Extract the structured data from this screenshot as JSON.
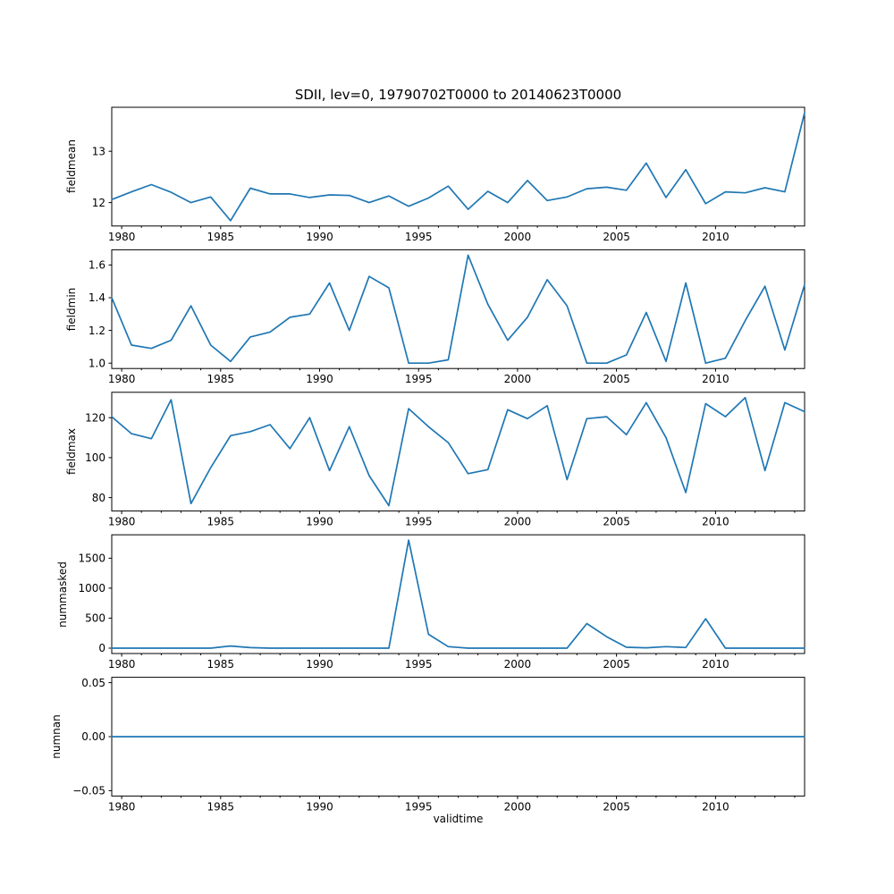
{
  "chart_data": {
    "type": "line",
    "title": "SDII, lev=0, 19790702T0000 to 20140623T0000",
    "xlabel": "validtime",
    "line_color": "#1f77b4",
    "background_color": "#ffffff",
    "legend": "none",
    "grid": false,
    "x": [
      1979.5,
      1980.5,
      1981.5,
      1982.5,
      1983.5,
      1984.5,
      1985.5,
      1986.5,
      1987.5,
      1988.5,
      1989.5,
      1990.5,
      1991.5,
      1992.5,
      1993.5,
      1994.5,
      1995.5,
      1996.5,
      1997.5,
      1998.5,
      1999.5,
      2000.5,
      2001.5,
      2002.5,
      2003.5,
      2004.5,
      2005.5,
      2006.5,
      2007.5,
      2008.5,
      2009.5,
      2010.5,
      2011.5,
      2012.5,
      2013.5,
      2014.5
    ],
    "xlim": [
      1979.5,
      2014.5
    ],
    "xticks": [
      1980,
      1985,
      1990,
      1995,
      2000,
      2005,
      2010
    ],
    "xtick_labels": [
      "1980",
      "1985",
      "1990",
      "1995",
      "2000",
      "2005",
      "2010"
    ],
    "series": [
      {
        "name": "fieldmean",
        "ylim": [
          11.545,
          13.855
        ],
        "yticks": [
          12,
          13
        ],
        "ytick_labels": [
          "12",
          "13"
        ],
        "values": [
          12.06,
          12.21,
          12.35,
          12.2,
          12.0,
          12.11,
          11.65,
          12.28,
          12.17,
          12.17,
          12.1,
          12.15,
          12.14,
          12.0,
          12.13,
          11.93,
          12.09,
          12.32,
          11.87,
          12.22,
          12.0,
          12.43,
          12.04,
          12.11,
          12.27,
          12.3,
          12.24,
          12.77,
          12.1,
          12.64,
          11.98,
          12.21,
          12.19,
          12.29,
          12.21,
          13.75
        ]
      },
      {
        "name": "fieldmin",
        "ylim": [
          0.967,
          1.693
        ],
        "yticks": [
          1.0,
          1.2,
          1.4,
          1.6
        ],
        "ytick_labels": [
          "1.0",
          "1.2",
          "1.4",
          "1.6"
        ],
        "values": [
          1.4,
          1.11,
          1.09,
          1.14,
          1.35,
          1.11,
          1.01,
          1.16,
          1.19,
          1.28,
          1.3,
          1.49,
          1.2,
          1.53,
          1.46,
          1.0,
          1.0,
          1.02,
          1.66,
          1.36,
          1.14,
          1.28,
          1.51,
          1.35,
          1.0,
          1.0,
          1.05,
          1.31,
          1.01,
          1.49,
          1.0,
          1.03,
          1.26,
          1.47,
          1.08,
          1.48
        ]
      },
      {
        "name": "fieldmax",
        "ylim": [
          73.3,
          132.7
        ],
        "yticks": [
          80,
          100,
          120
        ],
        "ytick_labels": [
          "80",
          "100",
          "120"
        ],
        "values": [
          120.5,
          112,
          109.5,
          129,
          77,
          95,
          111,
          113,
          116.5,
          104.5,
          120,
          93.5,
          115.5,
          91,
          76,
          124.5,
          115.5,
          107.5,
          92,
          94,
          124,
          119.5,
          126,
          89,
          119.5,
          120.5,
          111.5,
          127.5,
          110,
          82.5,
          127,
          120.5,
          130,
          93.5,
          127.5,
          123
        ]
      },
      {
        "name": "nummasked",
        "ylim": [
          -90,
          1890
        ],
        "yticks": [
          0,
          500,
          1000,
          1500
        ],
        "ytick_labels": [
          "0",
          "500",
          "1000",
          "1500"
        ],
        "values": [
          0,
          0,
          0,
          0,
          0,
          0,
          35,
          8,
          0,
          0,
          0,
          0,
          0,
          0,
          0,
          1800,
          230,
          25,
          0,
          0,
          0,
          0,
          0,
          0,
          410,
          190,
          15,
          5,
          25,
          10,
          490,
          0,
          0,
          0,
          0,
          0
        ]
      },
      {
        "name": "numnan",
        "ylim": [
          -0.055,
          0.055
        ],
        "yticks": [
          -0.05,
          0,
          0.05
        ],
        "ytick_labels": [
          "−0.05",
          "0.00",
          "0.05"
        ],
        "values": [
          0,
          0,
          0,
          0,
          0,
          0,
          0,
          0,
          0,
          0,
          0,
          0,
          0,
          0,
          0,
          0,
          0,
          0,
          0,
          0,
          0,
          0,
          0,
          0,
          0,
          0,
          0,
          0,
          0,
          0,
          0,
          0,
          0,
          0,
          0,
          0
        ]
      }
    ]
  }
}
